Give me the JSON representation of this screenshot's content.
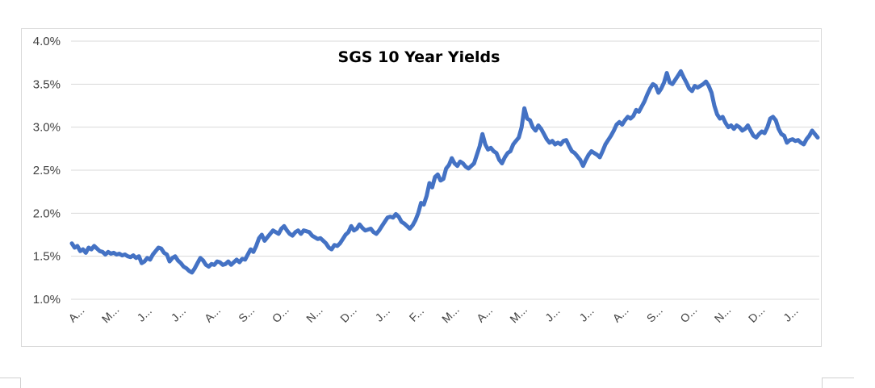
{
  "chart_data": {
    "type": "line",
    "title": "SGS 10 Year Yields",
    "xlabel": "",
    "ylabel": "",
    "ylim": [
      0.01,
      0.04
    ],
    "y_tick_labels": [
      "1.0%",
      "1.5%",
      "2.0%",
      "2.5%",
      "3.0%",
      "3.5%",
      "4.0%"
    ],
    "y_ticks": [
      0.01,
      0.015,
      0.02,
      0.025,
      0.03,
      0.035,
      0.04
    ],
    "x_tick_labels": [
      "A...",
      "M...",
      "J...",
      "J...",
      "A...",
      "S...",
      "O...",
      "N...",
      "D...",
      "J...",
      "F...",
      "M...",
      "A...",
      "M...",
      "J...",
      "J...",
      "A...",
      "S...",
      "O...",
      "N...",
      "D...",
      "J..."
    ],
    "grid": "horizontal",
    "legend": "none",
    "series_color": "#4472C4",
    "series": [
      {
        "values": [
          0.0165,
          0.016,
          0.0162,
          0.0156,
          0.0158,
          0.0154,
          0.016,
          0.0158,
          0.0162,
          0.0159,
          0.0156,
          0.0155,
          0.0152,
          0.0155,
          0.0153,
          0.0154,
          0.0152,
          0.0153,
          0.0151,
          0.0152,
          0.015,
          0.0149,
          0.0151,
          0.0148,
          0.015,
          0.0142,
          0.0144,
          0.0148,
          0.0146,
          0.0152,
          0.0156,
          0.016,
          0.0159,
          0.0154,
          0.0152,
          0.0144,
          0.0148,
          0.015,
          0.0145,
          0.0142,
          0.0138,
          0.0136,
          0.0133,
          0.0131,
          0.0136,
          0.0142,
          0.0148,
          0.0145,
          0.014,
          0.0138,
          0.0141,
          0.014,
          0.0144,
          0.0143,
          0.014,
          0.0141,
          0.0144,
          0.014,
          0.0143,
          0.0146,
          0.0143,
          0.0147,
          0.0146,
          0.0152,
          0.0158,
          0.0155,
          0.0162,
          0.0171,
          0.0175,
          0.0168,
          0.0172,
          0.0176,
          0.018,
          0.0178,
          0.0176,
          0.0182,
          0.0185,
          0.018,
          0.0176,
          0.0174,
          0.0178,
          0.018,
          0.0176,
          0.018,
          0.0179,
          0.0178,
          0.0174,
          0.0172,
          0.017,
          0.0171,
          0.0168,
          0.0165,
          0.016,
          0.0158,
          0.0163,
          0.0162,
          0.0165,
          0.017,
          0.0175,
          0.0178,
          0.0185,
          0.018,
          0.0182,
          0.0187,
          0.0183,
          0.018,
          0.0181,
          0.0182,
          0.0178,
          0.0176,
          0.018,
          0.0185,
          0.019,
          0.0195,
          0.0196,
          0.0195,
          0.0199,
          0.0196,
          0.019,
          0.0188,
          0.0185,
          0.0182,
          0.0186,
          0.0192,
          0.02,
          0.0212,
          0.021,
          0.022,
          0.0235,
          0.023,
          0.0242,
          0.0245,
          0.0238,
          0.024,
          0.0252,
          0.0256,
          0.0264,
          0.0258,
          0.0255,
          0.026,
          0.0258,
          0.0254,
          0.0252,
          0.0255,
          0.0258,
          0.0268,
          0.0278,
          0.0292,
          0.028,
          0.0274,
          0.0276,
          0.0272,
          0.027,
          0.0262,
          0.0258,
          0.0265,
          0.027,
          0.0272,
          0.028,
          0.0284,
          0.0288,
          0.03,
          0.0322,
          0.031,
          0.0308,
          0.03,
          0.0296,
          0.0302,
          0.0298,
          0.0292,
          0.0286,
          0.0282,
          0.0284,
          0.028,
          0.0282,
          0.028,
          0.0284,
          0.0285,
          0.0278,
          0.0272,
          0.027,
          0.0266,
          0.0262,
          0.0255,
          0.0262,
          0.0268,
          0.0272,
          0.027,
          0.0268,
          0.0265,
          0.0272,
          0.028,
          0.0285,
          0.029,
          0.0296,
          0.0303,
          0.0306,
          0.0303,
          0.0308,
          0.0312,
          0.031,
          0.0313,
          0.032,
          0.0318,
          0.0324,
          0.033,
          0.0338,
          0.0345,
          0.035,
          0.0348,
          0.034,
          0.0345,
          0.0352,
          0.0363,
          0.0352,
          0.035,
          0.0355,
          0.036,
          0.0365,
          0.0358,
          0.0352,
          0.0345,
          0.0342,
          0.0348,
          0.0346,
          0.0348,
          0.035,
          0.0353,
          0.0348,
          0.034,
          0.0325,
          0.0315,
          0.031,
          0.0312,
          0.0305,
          0.03,
          0.0302,
          0.0298,
          0.0302,
          0.03,
          0.0296,
          0.0298,
          0.0302,
          0.0296,
          0.029,
          0.0288,
          0.0292,
          0.0295,
          0.0293,
          0.03,
          0.031,
          0.0312,
          0.0308,
          0.0298,
          0.0292,
          0.029,
          0.0282,
          0.0285,
          0.0286,
          0.0284,
          0.0285,
          0.0282,
          0.028,
          0.0286,
          0.029,
          0.0296,
          0.0292,
          0.0288
        ]
      }
    ]
  }
}
